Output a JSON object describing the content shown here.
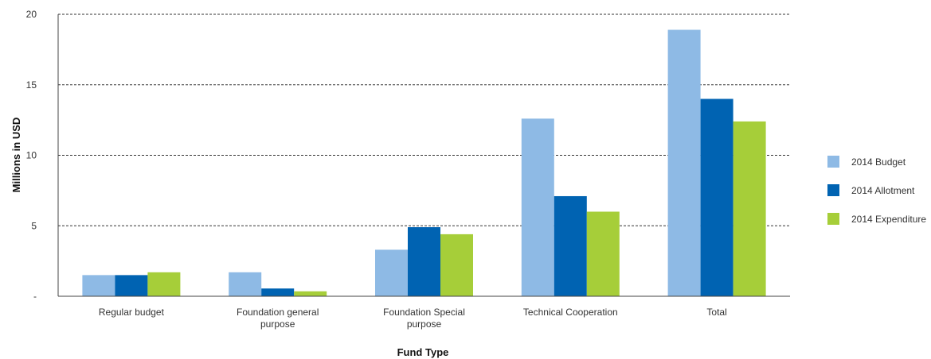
{
  "chart_data": {
    "type": "bar",
    "xlabel": "Fund Type",
    "ylabel": "Millions  in USD",
    "ylim": [
      0,
      20
    ],
    "yticks": [
      {
        "value": 0,
        "label": "-"
      },
      {
        "value": 5,
        "label": "5"
      },
      {
        "value": 10,
        "label": "10"
      },
      {
        "value": 15,
        "label": "15"
      },
      {
        "value": 20,
        "label": "20"
      }
    ],
    "grid": true,
    "legend_position": "right",
    "categories": [
      [
        "Regular budget"
      ],
      [
        "Foundation general",
        "purpose"
      ],
      [
        "Foundation Special",
        "purpose"
      ],
      [
        "Technical Cooperation"
      ],
      [
        "Total"
      ]
    ],
    "series": [
      {
        "name": "2014 Budget",
        "color": "#8EBAE5",
        "values": [
          1.5,
          1.7,
          3.3,
          12.6,
          18.9
        ]
      },
      {
        "name": "2014 Allotment",
        "color": "#0063B2",
        "values": [
          1.5,
          0.55,
          4.9,
          7.1,
          14.0
        ]
      },
      {
        "name": "2014 Expenditure",
        "color": "#A6CE39",
        "values": [
          1.7,
          0.35,
          4.4,
          6.0,
          12.4
        ]
      }
    ]
  }
}
